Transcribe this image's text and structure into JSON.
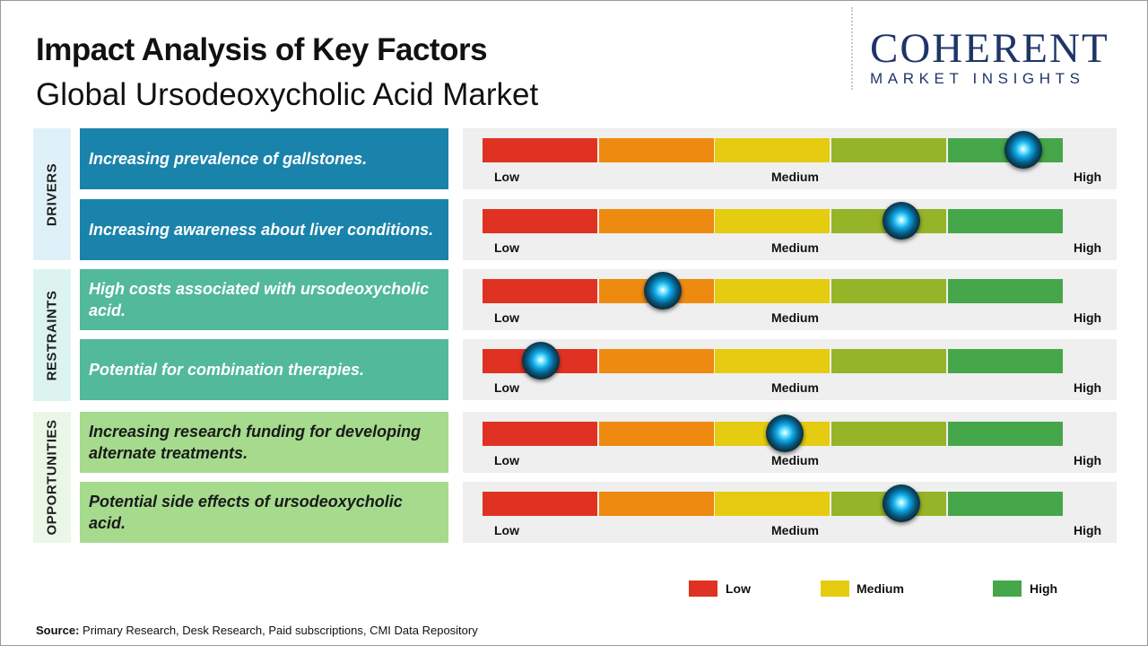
{
  "header": {
    "title": "Impact Analysis of Key Factors",
    "subtitle": "Global Ursodeoxycholic Acid Market"
  },
  "logo": {
    "main": "COHERENT",
    "sub": "MARKET INSIGHTS"
  },
  "categories": [
    {
      "label": "DRIVERS",
      "bg": "#dff1f8"
    },
    {
      "label": "RESTRAINTS",
      "bg": "#dcf3ef"
    },
    {
      "label": "OPPORTUNITIES",
      "bg": "#eaf6e6"
    }
  ],
  "scale": {
    "low": "Low",
    "medium": "Medium",
    "high": "High",
    "segment_colors": [
      "#e03222",
      "#ee8a10",
      "#e6cc10",
      "#96b428",
      "#46a64a"
    ]
  },
  "chart_data": {
    "type": "table",
    "rows": [
      {
        "category": "DRIVERS",
        "factor": "Increasing prevalence of gallstones.",
        "impact": 0.93,
        "box_color": "#1a83ab",
        "text_color": "#ffffff"
      },
      {
        "category": "DRIVERS",
        "factor": "Increasing awareness about liver conditions.",
        "impact": 0.72,
        "box_color": "#1a83ab",
        "text_color": "#ffffff"
      },
      {
        "category": "RESTRAINTS",
        "factor": "High costs associated with ursodeoxycholic acid.",
        "impact": 0.31,
        "box_color": "#52b99b",
        "text_color": "#ffffff"
      },
      {
        "category": "RESTRAINTS",
        "factor": "Potential for combination therapies.",
        "impact": 0.1,
        "box_color": "#52b99b",
        "text_color": "#ffffff"
      },
      {
        "category": "OPPORTUNITIES",
        "factor": "Increasing research funding for developing alternate treatments.",
        "impact": 0.52,
        "box_color": "#a6db8e",
        "text_color": "#1a1a1a"
      },
      {
        "category": "OPPORTUNITIES",
        "factor": "Potential side effects of ursodeoxycholic acid.",
        "impact": 0.72,
        "box_color": "#a6db8e",
        "text_color": "#1a1a1a"
      }
    ]
  },
  "legend": [
    {
      "label": "Low",
      "color": "#e03222"
    },
    {
      "label": "Medium",
      "color": "#e6cc10"
    },
    {
      "label": "High",
      "color": "#46a64a"
    }
  ],
  "source": {
    "label": "Source:",
    "text": " Primary Research, Desk Research, Paid subscriptions, CMI Data Repository"
  }
}
